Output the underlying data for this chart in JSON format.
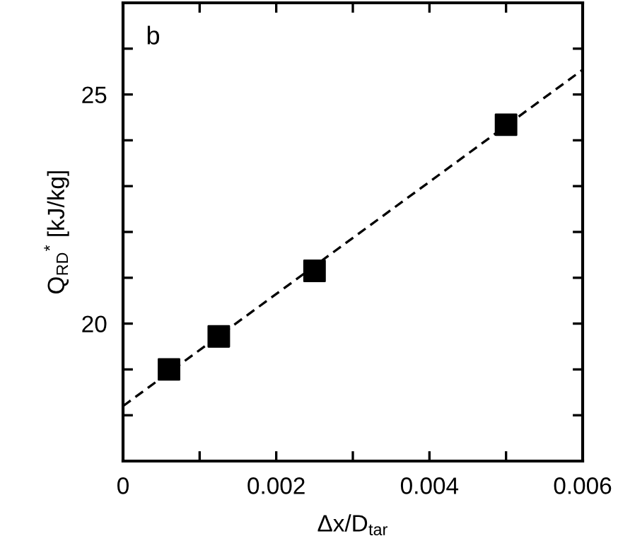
{
  "chart_data": {
    "type": "scatter",
    "xlabel": "Δx/D$_{tar}$",
    "ylabel": "Q$_{RD}$$^{*}$ [kJ/kg]",
    "annotations": [
      "b"
    ],
    "series": [
      {
        "color": "#000000",
        "marker": "square",
        "x": [
          0.0006,
          0.00125,
          0.0025,
          0.005
        ],
        "values": [
          19.0,
          19.72,
          21.15,
          24.34
        ]
      },
      {
        "type": "line",
        "color": "#000000",
        "marker": "none",
        "line_style": "dashed",
        "x": [
          0,
          0.006
        ],
        "values": [
          18.2,
          25.54
        ]
      }
    ],
    "xlim": [
      0,
      0.006
    ],
    "ylim": [
      17,
      27
    ],
    "xticks": [
      0,
      {
        "value": 0.001,
        "label": null
      },
      0.002,
      {
        "value": 0.003,
        "label": null
      },
      0.004,
      {
        "value": 0.005,
        "label": null
      },
      0.006
    ],
    "yticks": [
      {
        "value": 17,
        "label": null
      },
      {
        "value": 18,
        "label": null
      },
      {
        "value": 19,
        "label": null
      },
      20,
      {
        "value": 21,
        "label": null
      },
      {
        "value": 22,
        "label": null
      },
      {
        "value": 23,
        "label": null
      },
      {
        "value": 24,
        "label": null
      },
      25,
      {
        "value": 26,
        "label": null
      },
      {
        "value": 27,
        "label": null
      }
    ],
    "grid": false,
    "legend": false
  }
}
